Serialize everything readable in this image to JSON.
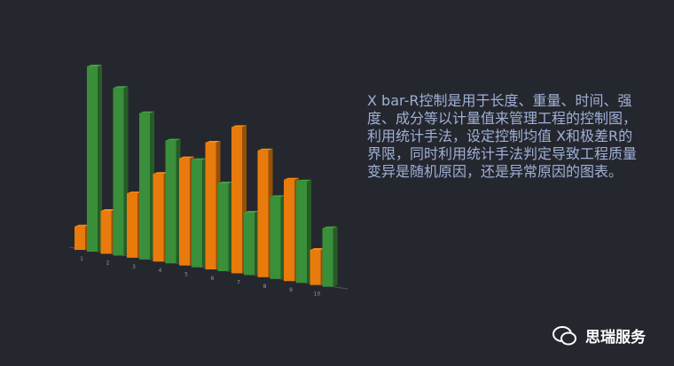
{
  "chart_data": {
    "type": "bar3d",
    "categories": [
      "1",
      "2",
      "3",
      "4",
      "5",
      "6",
      "7",
      "8",
      "9",
      "10"
    ],
    "series": [
      {
        "color": "#e87b0c",
        "values": [
          12,
          22,
          33,
          45,
          55,
          65,
          75,
          65,
          52,
          18
        ]
      },
      {
        "color": "#3a8f3a",
        "values": [
          95,
          86,
          75,
          63,
          55,
          45,
          32,
          42,
          52,
          30
        ]
      }
    ],
    "ylim": [
      0,
      100
    ]
  },
  "description": "X bar-R控制是用于长度、重量、时间、强度、成分等以计量值来管理工程的控制图，利用统计手法，设定控制均值 X和极差R的界限，同时利用统计手法判定导致工程质量变异是随机原因，还是异常原因的图表。",
  "footer": "思瑞服务"
}
